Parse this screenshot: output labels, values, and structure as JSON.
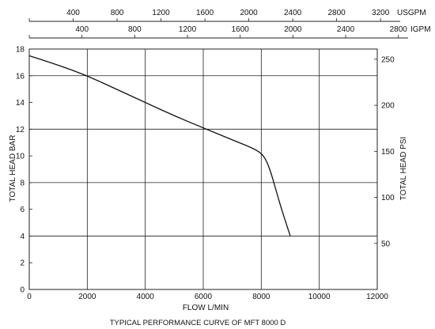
{
  "chart_data": {
    "type": "line",
    "title": "TYPICAL PERFORMANCE CURVE OF MFT 8000 D",
    "xlabel": "FLOW L/MIN",
    "ylabel": "TOTAL HEAD BAR",
    "ylabel_right": "TOTAL HEAD PSI",
    "xlim": [
      0,
      12000
    ],
    "ylim": [
      0,
      18
    ],
    "xticks": [
      "0",
      "2000",
      "4000",
      "6000",
      "8000",
      "10000",
      "12000"
    ],
    "yticks": [
      "0",
      "2",
      "4",
      "6",
      "8",
      "10",
      "12",
      "14",
      "16",
      "18"
    ],
    "right_axis": {
      "unit": "PSI",
      "ticks": [
        "50",
        "100",
        "150",
        "200",
        "250"
      ],
      "tick_values": [
        50,
        100,
        150,
        200,
        250
      ]
    },
    "top_axes": [
      {
        "unit": "USGPM",
        "ticks": [
          "400",
          "800",
          "1200",
          "1600",
          "2000",
          "2400",
          "2800",
          "3200"
        ],
        "tick_values": [
          400,
          800,
          1200,
          1600,
          2000,
          2400,
          2800,
          3200
        ]
      },
      {
        "unit": "IGPM",
        "ticks": [
          "400",
          "800",
          "1200",
          "1600",
          "2000",
          "2400",
          "2800"
        ],
        "tick_values": [
          400,
          800,
          1200,
          1600,
          2000,
          2400,
          2800
        ]
      }
    ],
    "grid": true,
    "series": [
      {
        "x": [
          0,
          1000,
          2000,
          3000,
          4000,
          5000,
          6000,
          7000,
          7800,
          8100,
          8300,
          8500,
          8700,
          9000
        ],
        "y": [
          17.5,
          16.8,
          16.0,
          15.0,
          14.0,
          13.0,
          12.1,
          11.2,
          10.5,
          10.0,
          9.0,
          7.5,
          6.0,
          4.0
        ]
      }
    ],
    "colors": {
      "line": "#111111",
      "grid": "#222222"
    }
  }
}
